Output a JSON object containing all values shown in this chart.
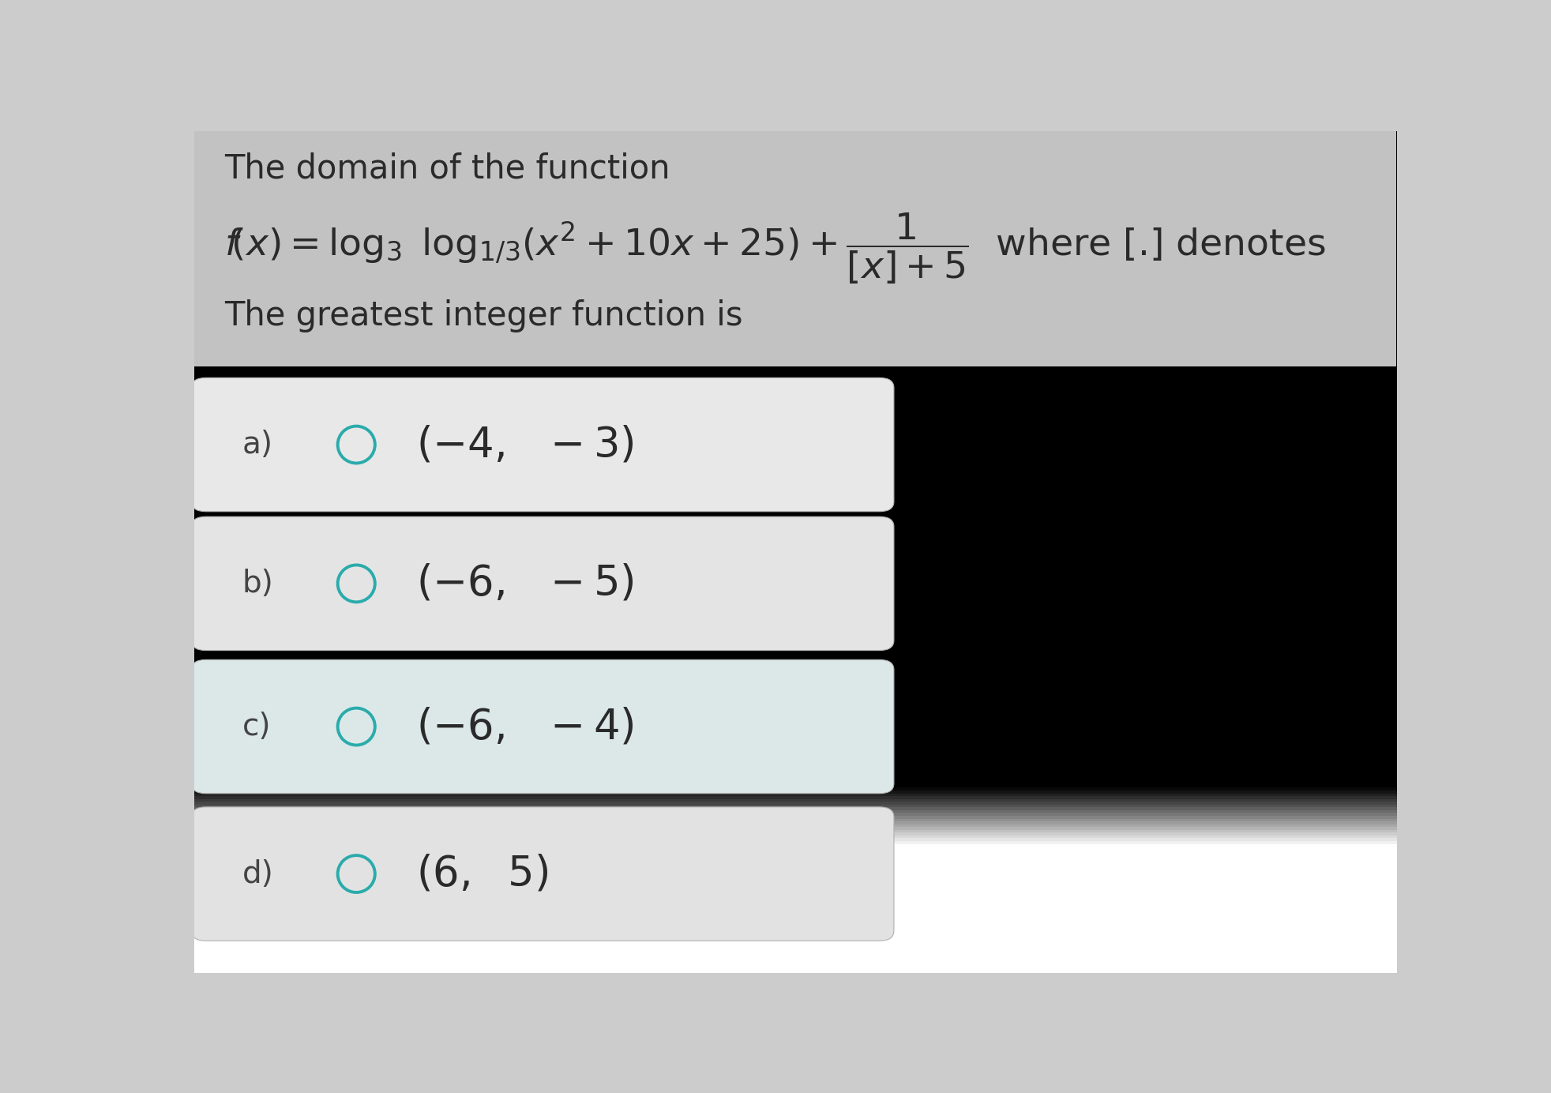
{
  "bg_top_color": "#c8c8c8",
  "bg_bottom_color": "#d5d5d5",
  "question_bg": "#c0c0c0",
  "option_bg_a": "#e8e8e8",
  "option_bg_b": "#e4e4e4",
  "option_bg_c": "#dce8e8",
  "option_bg_d": "#e2e2e2",
  "title_line1": "The domain of the function",
  "title_line3": "The greatest integer function is",
  "options": [
    {
      "label": "a)",
      "text": "$(-4,\\ \\ -3)$"
    },
    {
      "label": "b)",
      "text": "$(-6,\\ \\ -5)$"
    },
    {
      "label": "c)",
      "text": "$(-6,\\ \\ -4)$"
    },
    {
      "label": "d)",
      "text": "$(6,\\ \\ 5)$"
    }
  ],
  "circle_color": "#2aabab",
  "option_border_color": "#b0b0b0",
  "text_color": "#2a2a2a",
  "label_color": "#444444",
  "fig_width": 19.65,
  "fig_height": 13.84,
  "header_font_size": 30,
  "option_font_size": 38,
  "label_font_size": 28
}
